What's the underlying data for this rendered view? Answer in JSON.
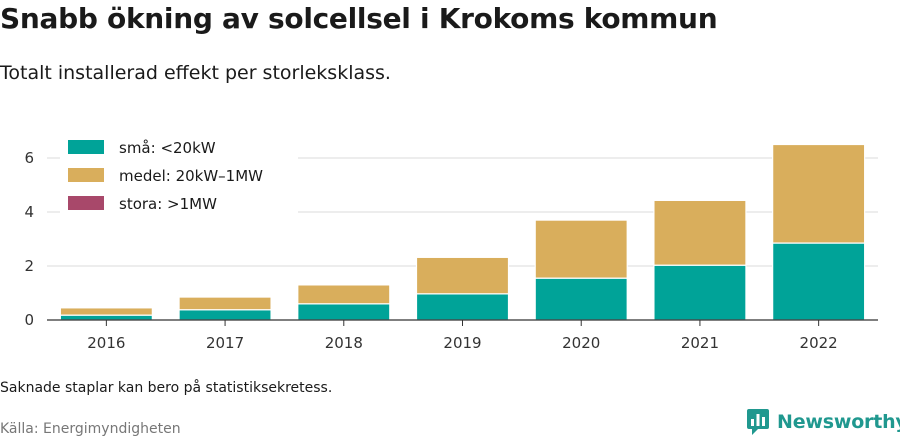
{
  "title": "Snabb ökning av solcellsel i Krokoms kommun",
  "subtitle": "Totalt installerad effekt per storleksklass.",
  "note": "Saknade staplar kan bero på statistiksekretess.",
  "source": "Källa: Energimyndigheten",
  "brand": "Newsworthy",
  "brand_icon": "chart-logo-icon",
  "chart_data": {
    "type": "bar",
    "stacked": true,
    "categories": [
      "2016",
      "2017",
      "2018",
      "2019",
      "2020",
      "2021",
      "2022"
    ],
    "series": [
      {
        "name": "små: <20kW",
        "color": "#00a398",
        "values": [
          0.18,
          0.38,
          0.6,
          0.97,
          1.55,
          2.03,
          2.85
        ]
      },
      {
        "name": "medel: 20kW–1MW",
        "color": "#d9ae5c",
        "values": [
          0.27,
          0.47,
          0.7,
          1.35,
          2.15,
          2.4,
          3.65
        ]
      },
      {
        "name": "stora: >1MW",
        "color": "#a8486a",
        "values": [
          0,
          0,
          0,
          0,
          0,
          0,
          0
        ]
      }
    ],
    "yticks": [
      0,
      2,
      4,
      6
    ],
    "ylim": [
      0,
      6.5
    ],
    "grid": true,
    "legend_position": "top-left"
  }
}
